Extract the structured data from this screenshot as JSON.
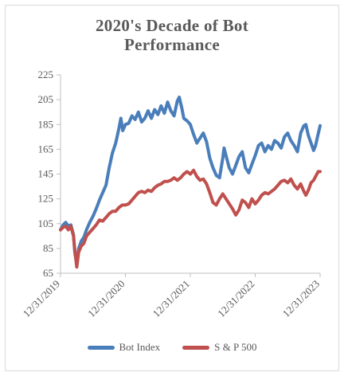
{
  "chart_data": {
    "type": "line",
    "title_lines": [
      "2020's Decade of Bot",
      "Performance"
    ],
    "xlabel": "",
    "ylabel": "",
    "ylim": [
      65,
      225
    ],
    "yticks": [
      65,
      85,
      105,
      125,
      145,
      165,
      185,
      205,
      225
    ],
    "x_tick_labels": [
      "12/31/2019",
      "12/31/2020",
      "12/31/2021",
      "12/31/2022",
      "12/31/2023"
    ],
    "grid": false,
    "legend_position": "bottom",
    "series": [
      {
        "name": "Bot Index",
        "color": "#4a7ebb",
        "points": [
          [
            0.0,
            100
          ],
          [
            0.04,
            104
          ],
          [
            0.08,
            106
          ],
          [
            0.12,
            103
          ],
          [
            0.16,
            104
          ],
          [
            0.2,
            96
          ],
          [
            0.22,
            82
          ],
          [
            0.25,
            72
          ],
          [
            0.28,
            85
          ],
          [
            0.32,
            91
          ],
          [
            0.36,
            94
          ],
          [
            0.4,
            100
          ],
          [
            0.45,
            106
          ],
          [
            0.5,
            111
          ],
          [
            0.55,
            117
          ],
          [
            0.6,
            124
          ],
          [
            0.65,
            130
          ],
          [
            0.7,
            136
          ],
          [
            0.75,
            150
          ],
          [
            0.8,
            162
          ],
          [
            0.85,
            170
          ],
          [
            0.9,
            182
          ],
          [
            0.93,
            190
          ],
          [
            0.96,
            180
          ],
          [
            1.0,
            185
          ],
          [
            1.05,
            186
          ],
          [
            1.1,
            192
          ],
          [
            1.15,
            189
          ],
          [
            1.2,
            195
          ],
          [
            1.25,
            187
          ],
          [
            1.3,
            190
          ],
          [
            1.35,
            196
          ],
          [
            1.4,
            190
          ],
          [
            1.45,
            197
          ],
          [
            1.5,
            193
          ],
          [
            1.55,
            200
          ],
          [
            1.6,
            194
          ],
          [
            1.65,
            203
          ],
          [
            1.7,
            196
          ],
          [
            1.75,
            192
          ],
          [
            1.8,
            204
          ],
          [
            1.83,
            207
          ],
          [
            1.87,
            198
          ],
          [
            1.9,
            190
          ],
          [
            1.95,
            188
          ],
          [
            2.0,
            185
          ],
          [
            2.05,
            177
          ],
          [
            2.1,
            170
          ],
          [
            2.15,
            174
          ],
          [
            2.2,
            178
          ],
          [
            2.25,
            171
          ],
          [
            2.3,
            158
          ],
          [
            2.35,
            150
          ],
          [
            2.4,
            144
          ],
          [
            2.45,
            142
          ],
          [
            2.5,
            158
          ],
          [
            2.52,
            166
          ],
          [
            2.55,
            160
          ],
          [
            2.6,
            150
          ],
          [
            2.65,
            145
          ],
          [
            2.7,
            152
          ],
          [
            2.75,
            159
          ],
          [
            2.8,
            163
          ],
          [
            2.85,
            150
          ],
          [
            2.9,
            146
          ],
          [
            2.95,
            153
          ],
          [
            3.0,
            160
          ],
          [
            3.05,
            168
          ],
          [
            3.1,
            170
          ],
          [
            3.15,
            163
          ],
          [
            3.2,
            168
          ],
          [
            3.25,
            165
          ],
          [
            3.3,
            172
          ],
          [
            3.35,
            170
          ],
          [
            3.4,
            166
          ],
          [
            3.45,
            175
          ],
          [
            3.5,
            178
          ],
          [
            3.55,
            172
          ],
          [
            3.6,
            168
          ],
          [
            3.65,
            163
          ],
          [
            3.7,
            178
          ],
          [
            3.75,
            184
          ],
          [
            3.78,
            185
          ],
          [
            3.82,
            176
          ],
          [
            3.86,
            170
          ],
          [
            3.9,
            164
          ],
          [
            3.93,
            168
          ],
          [
            3.96,
            175
          ],
          [
            4.0,
            184
          ]
        ]
      },
      {
        "name": "S & P 500",
        "color": "#c0504d",
        "points": [
          [
            0.0,
            100
          ],
          [
            0.04,
            102
          ],
          [
            0.08,
            103
          ],
          [
            0.12,
            100
          ],
          [
            0.16,
            103
          ],
          [
            0.2,
            95
          ],
          [
            0.22,
            84
          ],
          [
            0.25,
            70
          ],
          [
            0.28,
            82
          ],
          [
            0.32,
            87
          ],
          [
            0.36,
            89
          ],
          [
            0.4,
            95
          ],
          [
            0.45,
            98
          ],
          [
            0.5,
            101
          ],
          [
            0.55,
            104
          ],
          [
            0.6,
            108
          ],
          [
            0.65,
            107
          ],
          [
            0.7,
            110
          ],
          [
            0.75,
            113
          ],
          [
            0.8,
            115
          ],
          [
            0.85,
            115
          ],
          [
            0.9,
            118
          ],
          [
            0.95,
            120
          ],
          [
            1.0,
            120
          ],
          [
            1.05,
            121
          ],
          [
            1.1,
            124
          ],
          [
            1.15,
            127
          ],
          [
            1.2,
            130
          ],
          [
            1.25,
            131
          ],
          [
            1.3,
            130
          ],
          [
            1.35,
            132
          ],
          [
            1.4,
            131
          ],
          [
            1.45,
            134
          ],
          [
            1.5,
            136
          ],
          [
            1.55,
            137
          ],
          [
            1.6,
            139
          ],
          [
            1.65,
            139
          ],
          [
            1.7,
            140
          ],
          [
            1.75,
            142
          ],
          [
            1.8,
            140
          ],
          [
            1.85,
            142
          ],
          [
            1.9,
            145
          ],
          [
            1.95,
            147
          ],
          [
            2.0,
            145
          ],
          [
            2.05,
            148
          ],
          [
            2.1,
            143
          ],
          [
            2.15,
            140
          ],
          [
            2.2,
            141
          ],
          [
            2.25,
            137
          ],
          [
            2.3,
            130
          ],
          [
            2.35,
            122
          ],
          [
            2.4,
            120
          ],
          [
            2.45,
            125
          ],
          [
            2.5,
            129
          ],
          [
            2.55,
            125
          ],
          [
            2.6,
            121
          ],
          [
            2.65,
            117
          ],
          [
            2.7,
            112
          ],
          [
            2.75,
            116
          ],
          [
            2.8,
            124
          ],
          [
            2.85,
            122
          ],
          [
            2.9,
            118
          ],
          [
            2.95,
            125
          ],
          [
            3.0,
            121
          ],
          [
            3.05,
            124
          ],
          [
            3.1,
            128
          ],
          [
            3.15,
            130
          ],
          [
            3.2,
            129
          ],
          [
            3.25,
            131
          ],
          [
            3.3,
            133
          ],
          [
            3.35,
            136
          ],
          [
            3.4,
            139
          ],
          [
            3.45,
            140
          ],
          [
            3.5,
            138
          ],
          [
            3.55,
            141
          ],
          [
            3.6,
            136
          ],
          [
            3.65,
            133
          ],
          [
            3.7,
            137
          ],
          [
            3.75,
            131
          ],
          [
            3.78,
            128
          ],
          [
            3.82,
            132
          ],
          [
            3.86,
            138
          ],
          [
            3.9,
            140
          ],
          [
            3.94,
            144
          ],
          [
            3.97,
            147
          ],
          [
            4.0,
            147
          ]
        ]
      }
    ]
  }
}
